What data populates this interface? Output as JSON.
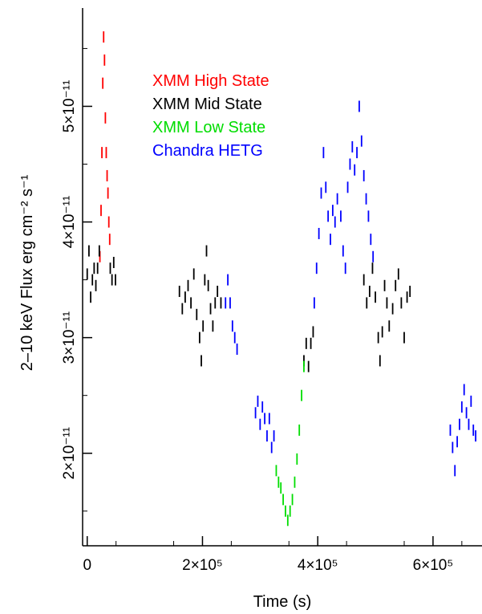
{
  "chart_data": {
    "type": "scatter",
    "xlabel": "Time (s)",
    "ylabel": "2–10 keV Flux erg cm⁻² s⁻¹",
    "xlim": [
      -8000,
      685000
    ],
    "ylim": [
      1.2e-11,
      5.85e-11
    ],
    "x_ticks": [
      {
        "value": 0,
        "label": "0"
      },
      {
        "value": 200000,
        "label": "2×10⁵"
      },
      {
        "value": 400000,
        "label": "4×10⁵"
      },
      {
        "value": 600000,
        "label": "6×10⁵"
      }
    ],
    "y_ticks": [
      {
        "value": 2e-11,
        "label": "2×10⁻¹¹"
      },
      {
        "value": 3e-11,
        "label": "3×10⁻¹¹"
      },
      {
        "value": 4e-11,
        "label": "4×10⁻¹¹"
      },
      {
        "value": 5e-11,
        "label": "5×10⁻¹¹"
      }
    ],
    "legend_placement": "top-center",
    "grid": false,
    "series": [
      {
        "name": "XMM High State",
        "color": "#ff0000",
        "points": [
          [
            22000,
            3.7e-11
          ],
          [
            24000,
            4.1e-11
          ],
          [
            25500,
            4.6e-11
          ],
          [
            27000,
            5.2e-11
          ],
          [
            28500,
            5.6e-11
          ],
          [
            30000,
            5.4e-11
          ],
          [
            31500,
            4.9e-11
          ],
          [
            33000,
            4.6e-11
          ],
          [
            34500,
            4.4e-11
          ],
          [
            36000,
            4.25e-11
          ],
          [
            37500,
            4e-11
          ],
          [
            39000,
            3.85e-11
          ]
        ]
      },
      {
        "name": "XMM Mid State",
        "color": "#000000",
        "points": [
          [
            0,
            3.55e-11
          ],
          [
            3000,
            3.75e-11
          ],
          [
            6000,
            3.35e-11
          ],
          [
            9000,
            3.5e-11
          ],
          [
            12000,
            3.6e-11
          ],
          [
            15000,
            3.45e-11
          ],
          [
            18000,
            3.6e-11
          ],
          [
            21000,
            3.75e-11
          ],
          [
            40000,
            3.6e-11
          ],
          [
            43000,
            3.5e-11
          ],
          [
            46000,
            3.65e-11
          ],
          [
            49000,
            3.5e-11
          ],
          [
            160000,
            3.4e-11
          ],
          [
            165000,
            3.25e-11
          ],
          [
            170000,
            3.35e-11
          ],
          [
            175000,
            3.45e-11
          ],
          [
            180000,
            3.3e-11
          ],
          [
            185000,
            3.55e-11
          ],
          [
            190000,
            3.2e-11
          ],
          [
            195000,
            3e-11
          ],
          [
            198000,
            2.8e-11
          ],
          [
            201000,
            3.1e-11
          ],
          [
            204000,
            3.5e-11
          ],
          [
            207000,
            3.75e-11
          ],
          [
            210000,
            3.45e-11
          ],
          [
            214000,
            3.25e-11
          ],
          [
            218000,
            3.1e-11
          ],
          [
            222000,
            3.3e-11
          ],
          [
            226000,
            3.4e-11
          ],
          [
            232000,
            3.3e-11
          ],
          [
            376000,
            2.8e-11
          ],
          [
            380000,
            2.95e-11
          ],
          [
            384000,
            2.75e-11
          ],
          [
            388000,
            2.95e-11
          ],
          [
            392000,
            3.05e-11
          ],
          [
            480000,
            3.5e-11
          ],
          [
            485000,
            3.3e-11
          ],
          [
            490000,
            3.4e-11
          ],
          [
            495000,
            3.6e-11
          ],
          [
            500000,
            3.35e-11
          ],
          [
            505000,
            3e-11
          ],
          [
            508000,
            2.8e-11
          ],
          [
            512000,
            3.05e-11
          ],
          [
            516000,
            3.45e-11
          ],
          [
            520000,
            3.3e-11
          ],
          [
            524000,
            3.1e-11
          ],
          [
            530000,
            3.25e-11
          ],
          [
            535000,
            3.45e-11
          ],
          [
            540000,
            3.55e-11
          ],
          [
            545000,
            3.3e-11
          ],
          [
            550000,
            3e-11
          ],
          [
            555000,
            3.35e-11
          ],
          [
            560000,
            3.4e-11
          ]
        ]
      },
      {
        "name": "XMM Low State",
        "color": "#00dd00",
        "points": [
          [
            328000,
            1.85e-11
          ],
          [
            332000,
            1.75e-11
          ],
          [
            336000,
            1.7e-11
          ],
          [
            340000,
            1.6e-11
          ],
          [
            344000,
            1.5e-11
          ],
          [
            348000,
            1.42e-11
          ],
          [
            352000,
            1.5e-11
          ],
          [
            356000,
            1.6e-11
          ],
          [
            360000,
            1.75e-11
          ],
          [
            364000,
            1.95e-11
          ],
          [
            368000,
            2.2e-11
          ],
          [
            372000,
            2.5e-11
          ],
          [
            376000,
            2.75e-11
          ]
        ]
      },
      {
        "name": "Chandra HETG",
        "color": "#0000ff",
        "points": [
          [
            240000,
            3.3e-11
          ],
          [
            244000,
            3.5e-11
          ],
          [
            248000,
            3.3e-11
          ],
          [
            252000,
            3.1e-11
          ],
          [
            256000,
            3e-11
          ],
          [
            260000,
            2.9e-11
          ],
          [
            292000,
            2.35e-11
          ],
          [
            296000,
            2.45e-11
          ],
          [
            300000,
            2.25e-11
          ],
          [
            304000,
            2.4e-11
          ],
          [
            308000,
            2.3e-11
          ],
          [
            312000,
            2.15e-11
          ],
          [
            316000,
            2.3e-11
          ],
          [
            320000,
            2.05e-11
          ],
          [
            324000,
            2.15e-11
          ],
          [
            394000,
            3.3e-11
          ],
          [
            398000,
            3.6e-11
          ],
          [
            402000,
            3.9e-11
          ],
          [
            406000,
            4.25e-11
          ],
          [
            410000,
            4.6e-11
          ],
          [
            414000,
            4.3e-11
          ],
          [
            418000,
            4.05e-11
          ],
          [
            422000,
            3.85e-11
          ],
          [
            426000,
            4.1e-11
          ],
          [
            430000,
            4e-11
          ],
          [
            434000,
            4.2e-11
          ],
          [
            440000,
            4.05e-11
          ],
          [
            444000,
            3.75e-11
          ],
          [
            448000,
            3.6e-11
          ],
          [
            452000,
            4.3e-11
          ],
          [
            456000,
            4.5e-11
          ],
          [
            460000,
            4.65e-11
          ],
          [
            464000,
            4.45e-11
          ],
          [
            468000,
            4.6e-11
          ],
          [
            472000,
            5e-11
          ],
          [
            476000,
            4.7e-11
          ],
          [
            480000,
            4.4e-11
          ],
          [
            484000,
            4.2e-11
          ],
          [
            488000,
            4.05e-11
          ],
          [
            492000,
            3.85e-11
          ],
          [
            496000,
            3.7e-11
          ],
          [
            630000,
            2.2e-11
          ],
          [
            634000,
            2.05e-11
          ],
          [
            638000,
            1.85e-11
          ],
          [
            642000,
            2.1e-11
          ],
          [
            646000,
            2.25e-11
          ],
          [
            650000,
            2.4e-11
          ],
          [
            654000,
            2.55e-11
          ],
          [
            658000,
            2.35e-11
          ],
          [
            662000,
            2.25e-11
          ],
          [
            666000,
            2.45e-11
          ],
          [
            670000,
            2.2e-11
          ],
          [
            674000,
            2.15e-11
          ]
        ]
      }
    ]
  }
}
